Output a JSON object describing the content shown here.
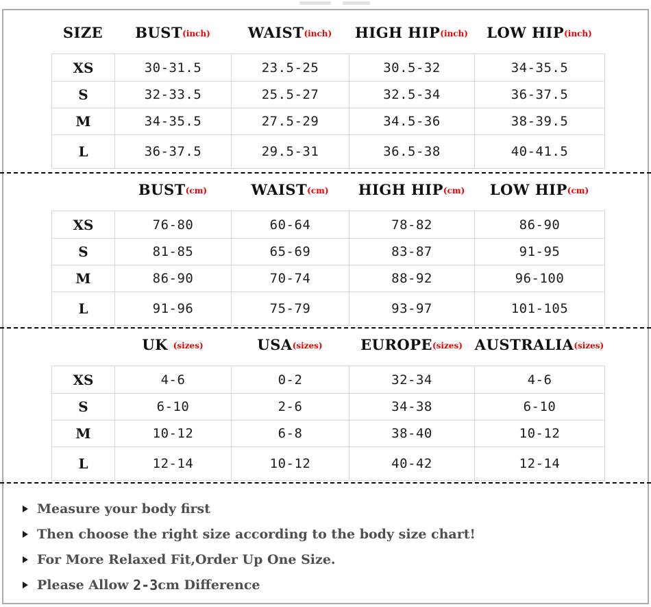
{
  "page": {
    "frame_border_color": "#ababab",
    "grid_line_color": "#d6d6d6",
    "accent_red": "#ec0000",
    "note_text_color": "#4e4e4e"
  },
  "tables": [
    {
      "header": [
        {
          "label": "SIZE",
          "unit": ""
        },
        {
          "label": "BUST",
          "unit": "(inch)"
        },
        {
          "label": "WAIST",
          "unit": "(inch)"
        },
        {
          "label": "HIGH HIP",
          "unit": "(inch)"
        },
        {
          "label": "LOW HIP",
          "unit": "(inch)"
        }
      ],
      "rows": [
        {
          "size": "XS",
          "values": [
            "30-31.5",
            "23.5-25",
            "30.5-32",
            "34-35.5"
          ]
        },
        {
          "size": "S",
          "values": [
            "32-33.5",
            "25.5-27",
            "32.5-34",
            "36-37.5"
          ]
        },
        {
          "size": "M",
          "values": [
            "34-35.5",
            "27.5-29",
            "34.5-36",
            "38-39.5"
          ]
        },
        {
          "size": "L",
          "values": [
            "36-37.5",
            "29.5-31",
            "36.5-38",
            "40-41.5"
          ]
        }
      ]
    },
    {
      "header": [
        {
          "label": "",
          "unit": ""
        },
        {
          "label": "BUST",
          "unit": "(cm)"
        },
        {
          "label": "WAIST",
          "unit": "(cm)"
        },
        {
          "label": "HIGH HIP",
          "unit": "(cm)"
        },
        {
          "label": "LOW HIP",
          "unit": "(cm)"
        }
      ],
      "rows": [
        {
          "size": "XS",
          "values": [
            "76-80",
            "60-64",
            "78-82",
            "86-90"
          ]
        },
        {
          "size": "S",
          "values": [
            "81-85",
            "65-69",
            "83-87",
            "91-95"
          ]
        },
        {
          "size": "M",
          "values": [
            "86-90",
            "70-74",
            "88-92",
            "96-100"
          ]
        },
        {
          "size": "L",
          "values": [
            "91-96",
            "75-79",
            "93-97",
            "101-105"
          ]
        }
      ]
    },
    {
      "header": [
        {
          "label": "",
          "unit": ""
        },
        {
          "label": "UK ",
          "unit": "(sizes)"
        },
        {
          "label": "USA",
          "unit": "(sizes)"
        },
        {
          "label": "EUROPE",
          "unit": "(sizes)"
        },
        {
          "label": "AUSTRALIA",
          "unit": "(sizes)"
        }
      ],
      "rows": [
        {
          "size": "XS",
          "values": [
            "4-6",
            "0-2",
            "32-34",
            "4-6"
          ]
        },
        {
          "size": "S",
          "values": [
            "6-10",
            "2-6",
            "34-38",
            "6-10"
          ]
        },
        {
          "size": "M",
          "values": [
            "10-12",
            "6-8",
            "38-40",
            "10-12"
          ]
        },
        {
          "size": "L",
          "values": [
            "12-14",
            "10-12",
            "40-42",
            "12-14"
          ]
        }
      ]
    }
  ],
  "notes": [
    {
      "text": "Measure your body first"
    },
    {
      "text": "Then choose the right size according to the body size chart!"
    },
    {
      "text": "For More Relaxed Fit,Order Up One Size."
    },
    {
      "text_before": "Please Allow ",
      "number": "2-3",
      "text_after": "cm Difference"
    }
  ]
}
